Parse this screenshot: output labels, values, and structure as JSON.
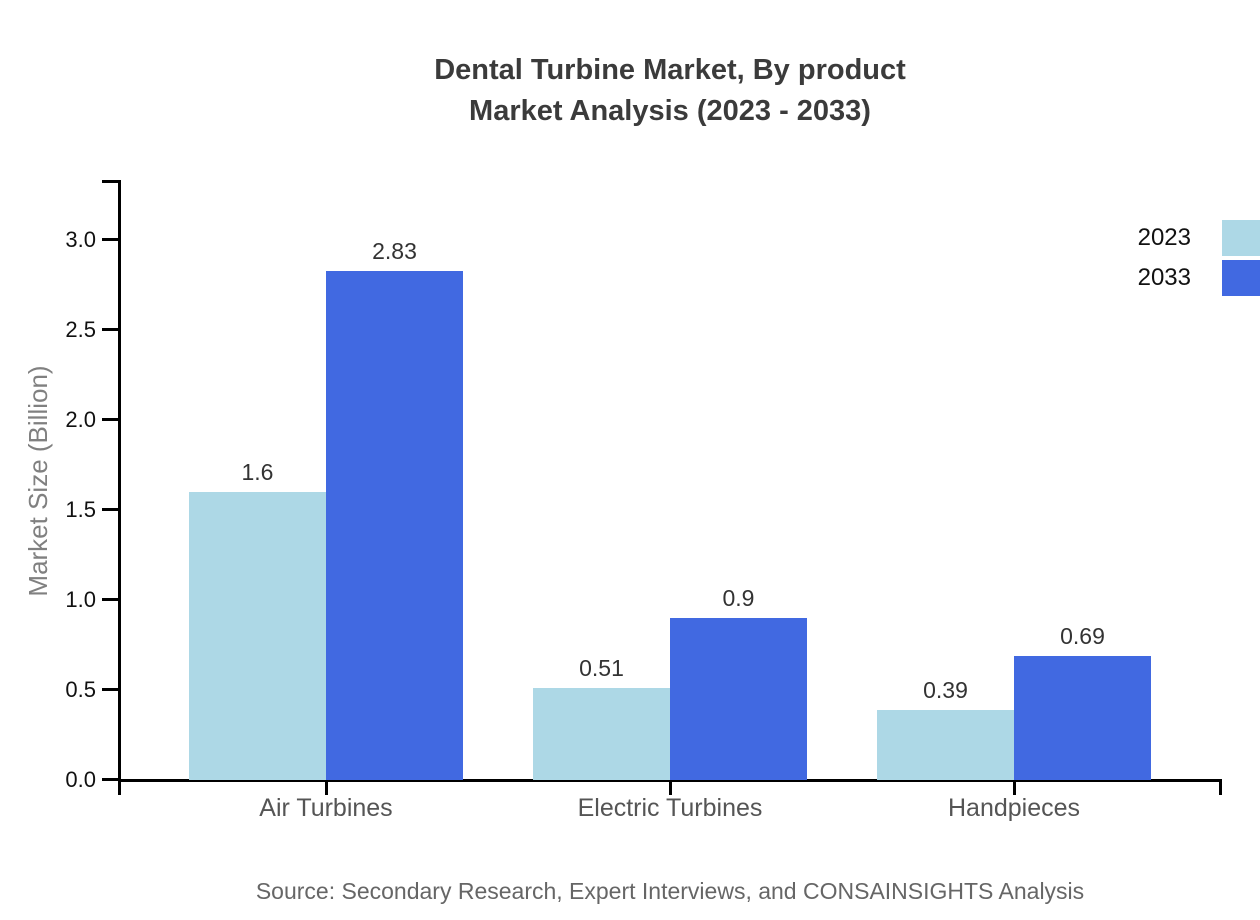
{
  "chart_data": {
    "type": "bar",
    "title": "Dental Turbine Market, By product Market Analysis (2023 - 2033)",
    "title_lines": [
      "Dental Turbine Market, By product",
      "Market Analysis (2023 - 2033)"
    ],
    "categories": [
      "Air Turbines",
      "Electric Turbines",
      "Handpieces"
    ],
    "series": [
      {
        "name": "2023",
        "color": "#ADD8E6",
        "values": [
          1.6,
          0.51,
          0.39
        ]
      },
      {
        "name": "2033",
        "color": "#4169E1",
        "values": [
          2.83,
          0.9,
          0.69
        ]
      }
    ],
    "xlabel": "",
    "ylabel": "Market Size (Billion)",
    "yticks": [
      0.0,
      0.5,
      1.0,
      1.5,
      2.0,
      2.5,
      3.0
    ],
    "ytick_labels": [
      "0.0",
      "0.5",
      "1.0",
      "1.5",
      "2.0",
      "2.5",
      "3.0"
    ],
    "ylim": [
      0,
      3.35
    ],
    "grid": false,
    "legend": {
      "position": "top-right",
      "entries": [
        "2023",
        "2033"
      ]
    },
    "source": "Source: Secondary Research, Expert Interviews, and CONSAINSIGHTS Analysis",
    "colors": {
      "axis": "#000000",
      "title_text": "#3b3b3b",
      "tick_label": "#111111",
      "category_label": "#555555",
      "value_label": "#333333",
      "ylabel_text": "#808080",
      "source_text": "#666666"
    }
  }
}
